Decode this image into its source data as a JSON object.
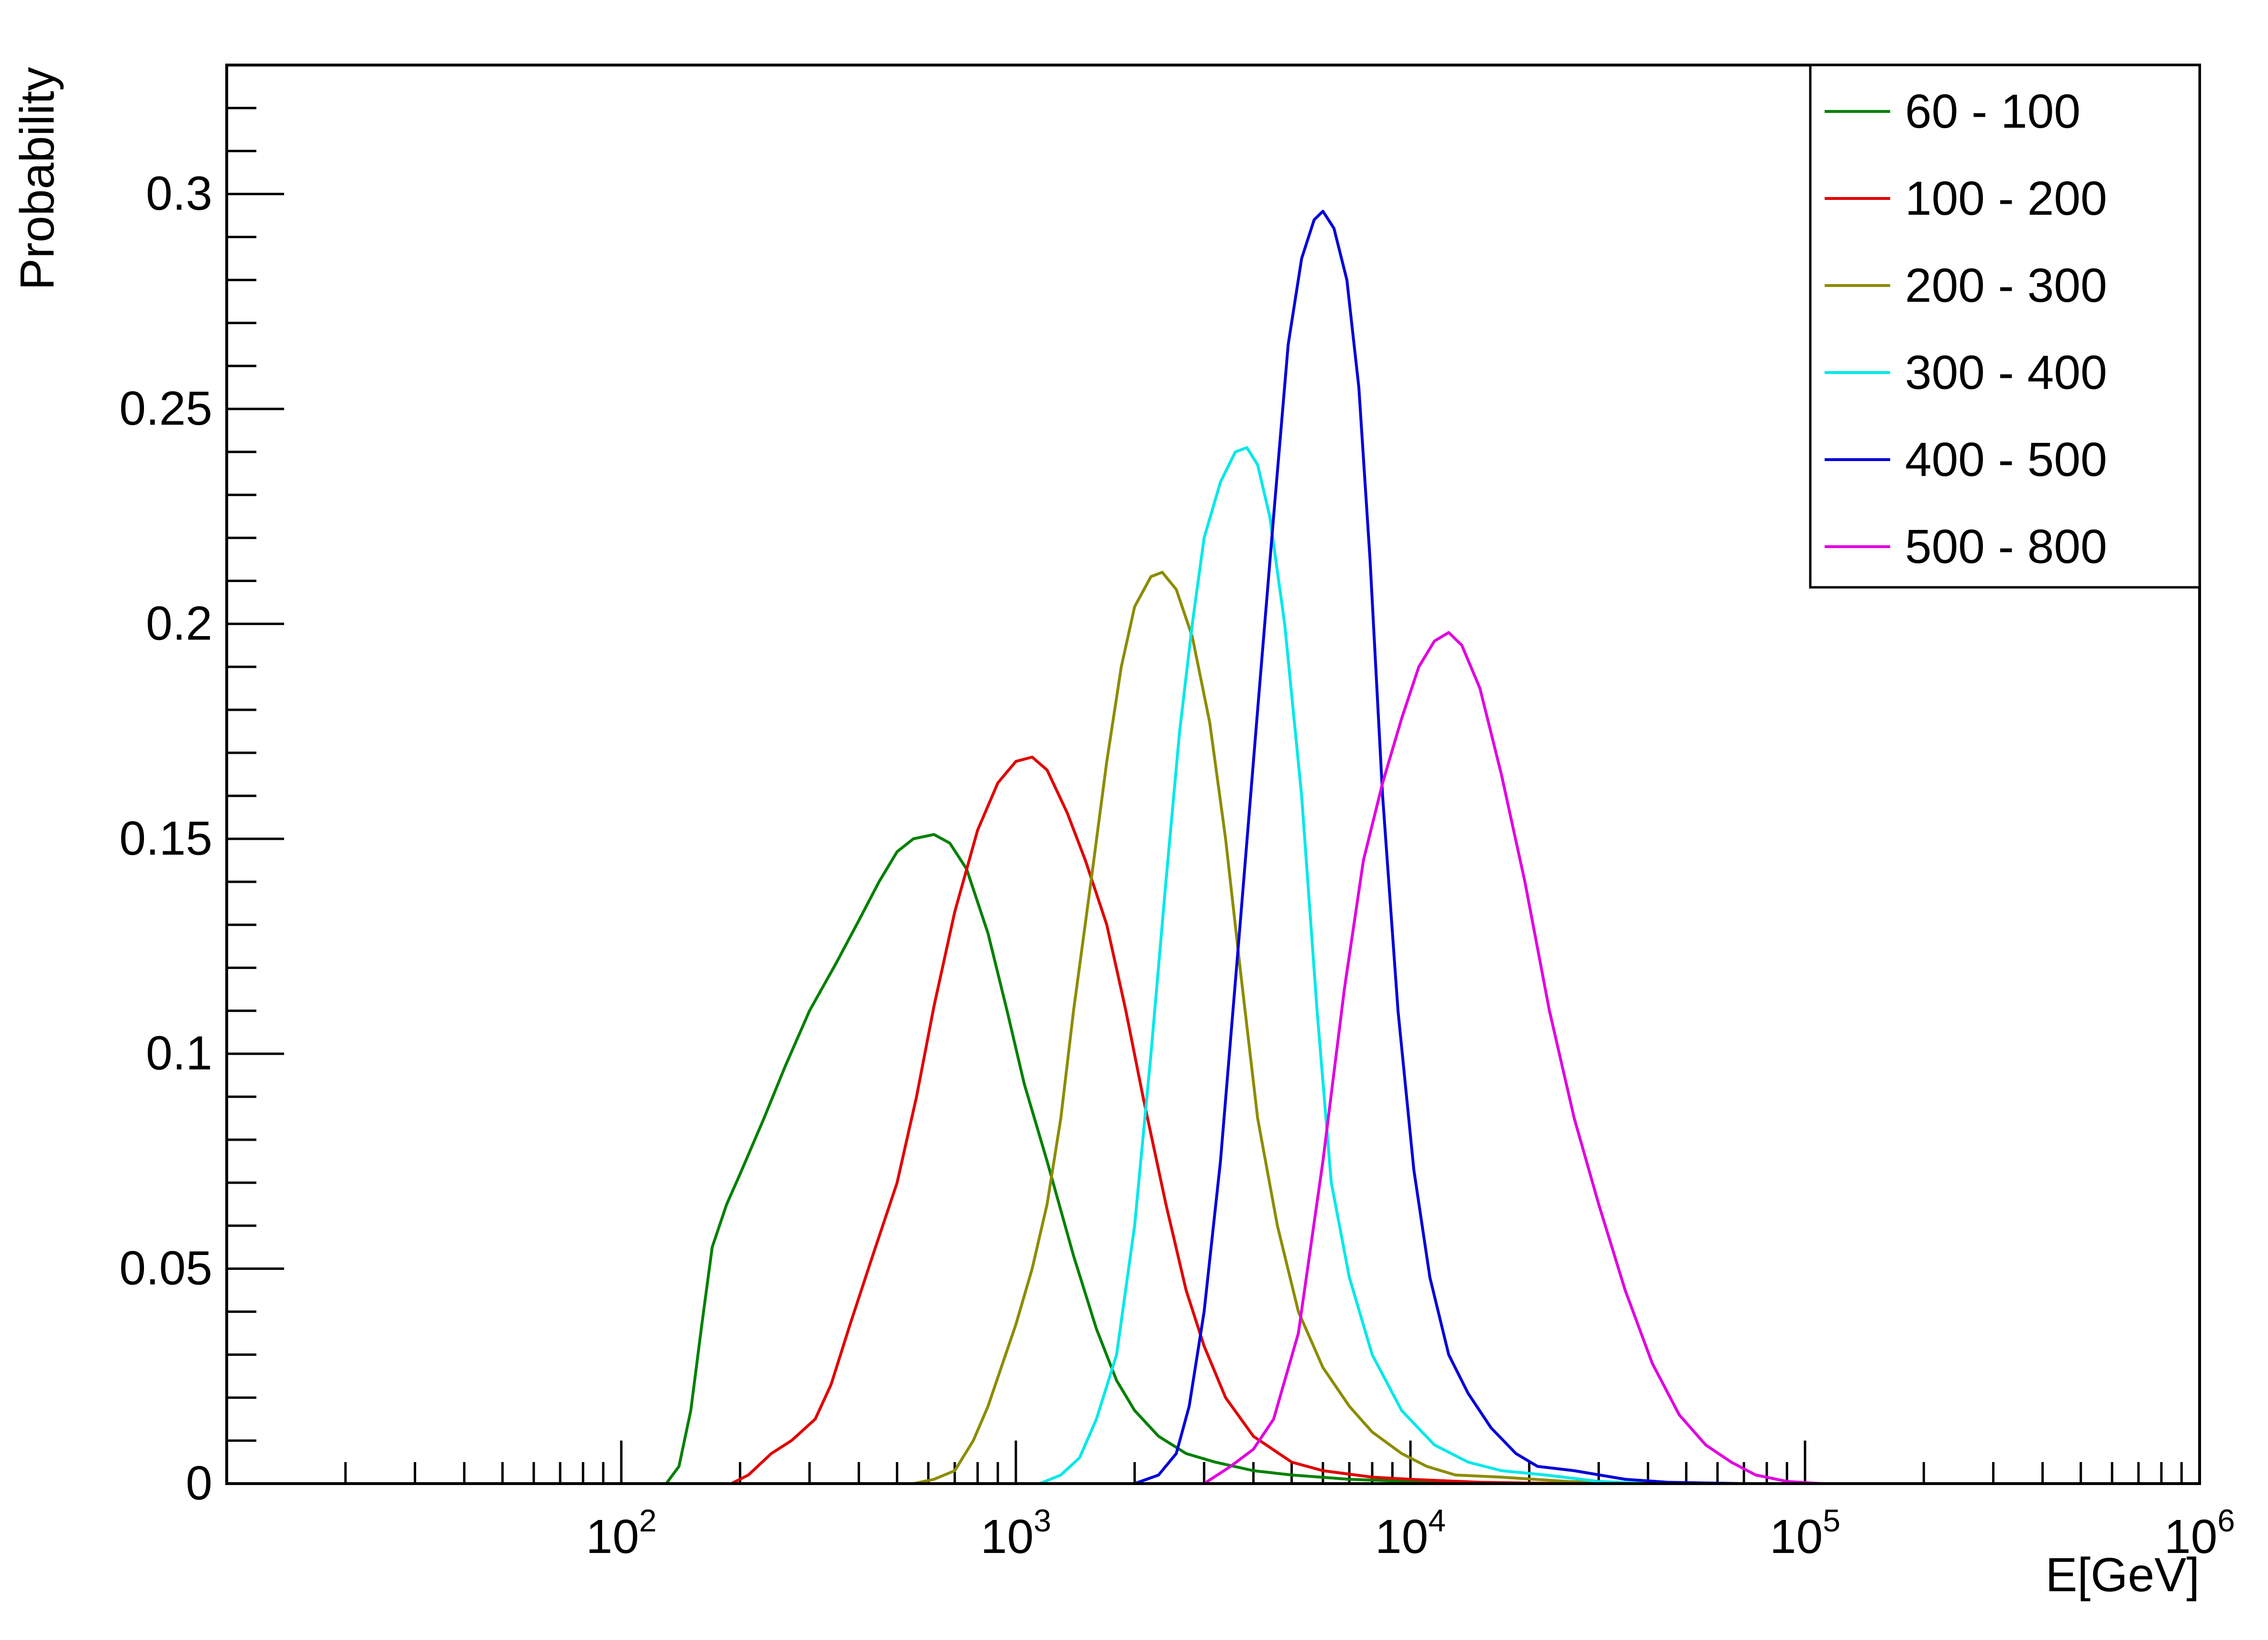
{
  "chart_data": {
    "type": "line",
    "title": "",
    "xlabel": "E[GeV]",
    "ylabel": "Probability",
    "xscale": "log",
    "xlim": [
      10,
      1000000
    ],
    "ylim": [
      0,
      0.33
    ],
    "grid": false,
    "legend_position": "top-right",
    "x_ticks": [
      {
        "value": 100,
        "base": "10",
        "exp": "2"
      },
      {
        "value": 1000,
        "base": "10",
        "exp": "3"
      },
      {
        "value": 10000,
        "base": "10",
        "exp": "4"
      },
      {
        "value": 100000,
        "base": "10",
        "exp": "5"
      },
      {
        "value": 1000000,
        "base": "10",
        "exp": "6"
      }
    ],
    "y_ticks": [
      {
        "value": 0,
        "label": "0"
      },
      {
        "value": 0.05,
        "label": "0.05"
      },
      {
        "value": 0.1,
        "label": "0.1"
      },
      {
        "value": 0.15,
        "label": "0.15"
      },
      {
        "value": 0.2,
        "label": "0.2"
      },
      {
        "value": 0.25,
        "label": "0.25"
      },
      {
        "value": 0.3,
        "label": "0.3"
      }
    ],
    "series": [
      {
        "name": "60 - 100",
        "color": "#008000",
        "points": [
          [
            130,
            0
          ],
          [
            140,
            0.004
          ],
          [
            150,
            0.017
          ],
          [
            160,
            0.037
          ],
          [
            170,
            0.055
          ],
          [
            185,
            0.065
          ],
          [
            200,
            0.072
          ],
          [
            230,
            0.085
          ],
          [
            260,
            0.097
          ],
          [
            300,
            0.11
          ],
          [
            350,
            0.121
          ],
          [
            400,
            0.131
          ],
          [
            450,
            0.14
          ],
          [
            500,
            0.147
          ],
          [
            550,
            0.15
          ],
          [
            620,
            0.151
          ],
          [
            680,
            0.149
          ],
          [
            750,
            0.143
          ],
          [
            850,
            0.128
          ],
          [
            950,
            0.11
          ],
          [
            1050,
            0.093
          ],
          [
            1200,
            0.075
          ],
          [
            1400,
            0.053
          ],
          [
            1600,
            0.036
          ],
          [
            1800,
            0.024
          ],
          [
            2000,
            0.017
          ],
          [
            2300,
            0.011
          ],
          [
            2700,
            0.007
          ],
          [
            3200,
            0.005
          ],
          [
            4000,
            0.003
          ],
          [
            5000,
            0.002
          ],
          [
            7000,
            0.001
          ],
          [
            10000,
            0.0005
          ],
          [
            15000,
            0.0001
          ],
          [
            20000,
            0
          ]
        ]
      },
      {
        "name": "100 - 200",
        "color": "#e00000",
        "points": [
          [
            190,
            0
          ],
          [
            210,
            0.002
          ],
          [
            240,
            0.007
          ],
          [
            270,
            0.01
          ],
          [
            310,
            0.015
          ],
          [
            340,
            0.023
          ],
          [
            380,
            0.037
          ],
          [
            430,
            0.052
          ],
          [
            500,
            0.07
          ],
          [
            560,
            0.09
          ],
          [
            620,
            0.111
          ],
          [
            700,
            0.133
          ],
          [
            800,
            0.152
          ],
          [
            900,
            0.163
          ],
          [
            1000,
            0.168
          ],
          [
            1100,
            0.169
          ],
          [
            1200,
            0.166
          ],
          [
            1350,
            0.156
          ],
          [
            1500,
            0.145
          ],
          [
            1700,
            0.13
          ],
          [
            1900,
            0.11
          ],
          [
            2100,
            0.09
          ],
          [
            2400,
            0.065
          ],
          [
            2700,
            0.045
          ],
          [
            3000,
            0.032
          ],
          [
            3400,
            0.02
          ],
          [
            4000,
            0.011
          ],
          [
            5000,
            0.005
          ],
          [
            6000,
            0.003
          ],
          [
            8000,
            0.0015
          ],
          [
            10000,
            0.001
          ],
          [
            15000,
            0.0003
          ],
          [
            25000,
            0
          ]
        ]
      },
      {
        "name": "200 - 300",
        "color": "#8c8c00",
        "points": [
          [
            550,
            0
          ],
          [
            620,
            0.001
          ],
          [
            700,
            0.003
          ],
          [
            780,
            0.01
          ],
          [
            850,
            0.018
          ],
          [
            1000,
            0.037
          ],
          [
            1100,
            0.05
          ],
          [
            1200,
            0.065
          ],
          [
            1300,
            0.085
          ],
          [
            1400,
            0.11
          ],
          [
            1550,
            0.14
          ],
          [
            1700,
            0.168
          ],
          [
            1850,
            0.19
          ],
          [
            2000,
            0.204
          ],
          [
            2200,
            0.211
          ],
          [
            2350,
            0.212
          ],
          [
            2550,
            0.208
          ],
          [
            2800,
            0.197
          ],
          [
            3100,
            0.177
          ],
          [
            3400,
            0.15
          ],
          [
            3700,
            0.12
          ],
          [
            4100,
            0.085
          ],
          [
            4600,
            0.06
          ],
          [
            5200,
            0.04
          ],
          [
            6000,
            0.027
          ],
          [
            7000,
            0.018
          ],
          [
            8000,
            0.012
          ],
          [
            9500,
            0.007
          ],
          [
            11000,
            0.004
          ],
          [
            13000,
            0.002
          ],
          [
            17000,
            0.0015
          ],
          [
            25000,
            0.0005
          ],
          [
            35000,
            0
          ]
        ]
      },
      {
        "name": "300 - 400",
        "color": "#00e8e8",
        "points": [
          [
            1150,
            0
          ],
          [
            1300,
            0.002
          ],
          [
            1450,
            0.006
          ],
          [
            1600,
            0.015
          ],
          [
            1800,
            0.03
          ],
          [
            2000,
            0.06
          ],
          [
            2200,
            0.1
          ],
          [
            2400,
            0.14
          ],
          [
            2600,
            0.175
          ],
          [
            2800,
            0.2
          ],
          [
            3000,
            0.22
          ],
          [
            3300,
            0.233
          ],
          [
            3600,
            0.24
          ],
          [
            3850,
            0.241
          ],
          [
            4100,
            0.237
          ],
          [
            4400,
            0.225
          ],
          [
            4800,
            0.2
          ],
          [
            5300,
            0.16
          ],
          [
            5800,
            0.11
          ],
          [
            6300,
            0.07
          ],
          [
            7000,
            0.048
          ],
          [
            8000,
            0.03
          ],
          [
            9500,
            0.017
          ],
          [
            11500,
            0.009
          ],
          [
            14000,
            0.005
          ],
          [
            17000,
            0.003
          ],
          [
            22000,
            0.002
          ],
          [
            30000,
            0.0005
          ],
          [
            40000,
            0
          ]
        ]
      },
      {
        "name": "400 - 500",
        "color": "#0000d8",
        "points": [
          [
            2000,
            0
          ],
          [
            2300,
            0.002
          ],
          [
            2550,
            0.007
          ],
          [
            2750,
            0.018
          ],
          [
            3000,
            0.04
          ],
          [
            3300,
            0.075
          ],
          [
            3700,
            0.13
          ],
          [
            4100,
            0.18
          ],
          [
            4500,
            0.225
          ],
          [
            4900,
            0.265
          ],
          [
            5300,
            0.285
          ],
          [
            5700,
            0.294
          ],
          [
            6000,
            0.296
          ],
          [
            6400,
            0.292
          ],
          [
            6900,
            0.28
          ],
          [
            7400,
            0.255
          ],
          [
            7900,
            0.215
          ],
          [
            8500,
            0.16
          ],
          [
            9300,
            0.11
          ],
          [
            10200,
            0.073
          ],
          [
            11200,
            0.048
          ],
          [
            12500,
            0.03
          ],
          [
            14000,
            0.021
          ],
          [
            16000,
            0.013
          ],
          [
            18500,
            0.007
          ],
          [
            21000,
            0.004
          ],
          [
            26000,
            0.003
          ],
          [
            35000,
            0.001
          ],
          [
            45000,
            0.0003
          ],
          [
            70000,
            0
          ],
          [
            170000,
            0
          ]
        ]
      },
      {
        "name": "500 - 800",
        "color": "#e000e0",
        "points": [
          [
            3000,
            0
          ],
          [
            3500,
            0.004
          ],
          [
            4000,
            0.008
          ],
          [
            4500,
            0.015
          ],
          [
            5200,
            0.035
          ],
          [
            6000,
            0.075
          ],
          [
            6800,
            0.115
          ],
          [
            7600,
            0.145
          ],
          [
            8500,
            0.163
          ],
          [
            9500,
            0.178
          ],
          [
            10500,
            0.19
          ],
          [
            11500,
            0.196
          ],
          [
            12500,
            0.198
          ],
          [
            13500,
            0.195
          ],
          [
            15000,
            0.185
          ],
          [
            17000,
            0.165
          ],
          [
            19500,
            0.14
          ],
          [
            22500,
            0.11
          ],
          [
            26000,
            0.085
          ],
          [
            30000,
            0.065
          ],
          [
            35000,
            0.045
          ],
          [
            41000,
            0.028
          ],
          [
            48000,
            0.016
          ],
          [
            56000,
            0.009
          ],
          [
            65000,
            0.005
          ],
          [
            75000,
            0.002
          ],
          [
            90000,
            0.0005
          ],
          [
            110000,
            0
          ],
          [
            1000000,
            0
          ]
        ]
      }
    ]
  }
}
